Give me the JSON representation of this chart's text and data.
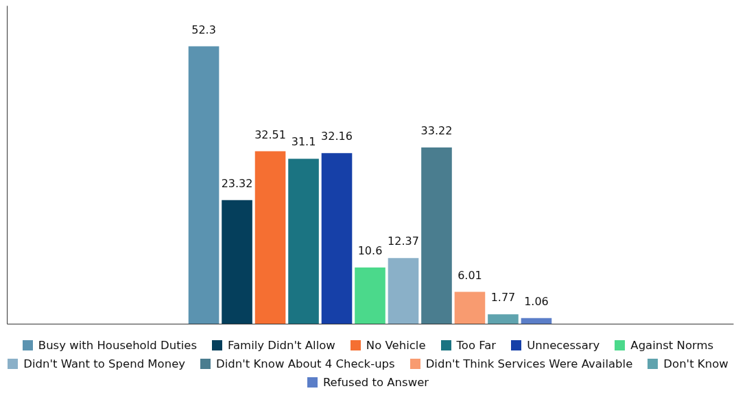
{
  "chart_data": {
    "type": "bar",
    "categories": [
      null
    ],
    "ylim": [
      0,
      60
    ],
    "data_labels": true,
    "legend": "bottom",
    "series": [
      {
        "name": "Busy with Household Duties",
        "color": "#5b93b0",
        "values": [
          52.3
        ]
      },
      {
        "name": "Family Didn't Allow",
        "color": "#053f5c",
        "values": [
          23.32
        ]
      },
      {
        "name": "No Vehicle",
        "color": "#f56f32",
        "values": [
          32.51
        ]
      },
      {
        "name": "Too Far",
        "color": "#1b7482",
        "values": [
          31.1
        ]
      },
      {
        "name": "Unnecessary",
        "color": "#1640a8",
        "values": [
          32.16
        ]
      },
      {
        "name": "Against Norms",
        "color": "#4bd98b",
        "values": [
          10.6
        ]
      },
      {
        "name": "Didn't Want to Spend Money",
        "color": "#8ab0c8",
        "values": [
          12.37
        ]
      },
      {
        "name": "Didn't Know About 4 Check-ups",
        "color": "#4a7d8f",
        "values": [
          33.22
        ]
      },
      {
        "name": "Didn't Think Services Were Available",
        "color": "#f89b70",
        "values": [
          6.01
        ]
      },
      {
        "name": "Don't Know",
        "color": "#5fa3ae",
        "values": [
          1.77
        ]
      },
      {
        "name": "Refused to Answer",
        "color": "#5b7ec8",
        "values": [
          1.06
        ]
      }
    ]
  }
}
